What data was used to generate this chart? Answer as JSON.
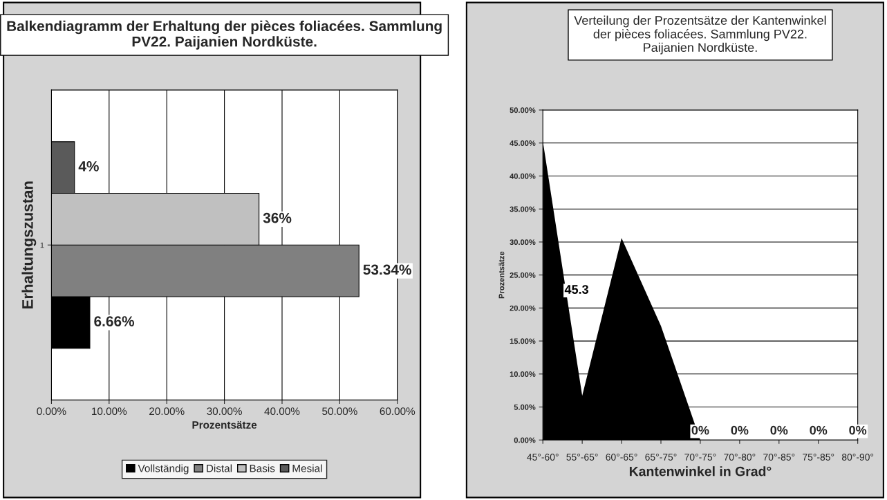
{
  "chart_data": [
    {
      "type": "bar",
      "orientation": "horizontal",
      "title": "Balkendiagramm der Erhaltung der pièces foliacées. Sammlung PV22. Paijanien Nordküste.",
      "xlabel": "Prozentsätze",
      "ylabel": "Erhaltungszustan",
      "categories": [
        "1"
      ],
      "series": [
        {
          "name": "Vollständig",
          "color": "#000000",
          "values": [
            6.66
          ],
          "value_labels": [
            "6.66%"
          ]
        },
        {
          "name": "Distal",
          "color": "#808080",
          "values": [
            53.34
          ],
          "value_labels": [
            "53.34%"
          ]
        },
        {
          "name": "Basis",
          "color": "#c0c0c0",
          "values": [
            36
          ],
          "value_labels": [
            "36%"
          ]
        },
        {
          "name": "Mesial",
          "color": "#5a5a5a",
          "values": [
            4
          ],
          "value_labels": [
            "4%"
          ]
        }
      ],
      "xlim": [
        0,
        60
      ],
      "xticks": [
        {
          "value": 0,
          "label": "0.00%"
        },
        {
          "value": 10,
          "label": "10.00%"
        },
        {
          "value": 20,
          "label": "20.00%"
        },
        {
          "value": 30,
          "label": "30.00%"
        },
        {
          "value": 40,
          "label": "40.00%"
        },
        {
          "value": 50,
          "label": "50.00%"
        },
        {
          "value": 60,
          "label": "60.00%"
        }
      ],
      "grid": "x",
      "legend": "bottom"
    },
    {
      "type": "area",
      "title": "Verteilung der Prozentsätze der Kantenwinkel\nder pièces foliacées. Sammlung PV22.\nPaijanien Nordküste.",
      "xlabel": "Kantenwinkel in Grad°",
      "ylabel": "Prozentsätze",
      "categories": [
        "45°-60°",
        "55°-65°",
        "60°-65°",
        "65°-75°",
        "70°-75°",
        "70°-80°",
        "70°-85°",
        "75°-85°",
        "80°-90°"
      ],
      "series": [
        {
          "color": "#000000",
          "values": [
            45.3,
            6.7,
            30.6,
            17.3,
            0,
            0,
            0,
            0,
            0
          ]
        }
      ],
      "value_labels": [
        "45.3",
        null,
        null,
        null,
        "0%",
        "0%",
        "0%",
        "0%",
        "0%"
      ],
      "ylim": [
        0,
        50
      ],
      "yticks": [
        {
          "value": 0,
          "label": "0.00%"
        },
        {
          "value": 5,
          "label": "5.00%"
        },
        {
          "value": 10,
          "label": "10.00%"
        },
        {
          "value": 15,
          "label": "15.00%"
        },
        {
          "value": 20,
          "label": "20.00%"
        },
        {
          "value": 25,
          "label": "25.00%"
        },
        {
          "value": 30,
          "label": "30.00%"
        },
        {
          "value": 35,
          "label": "35.00%"
        },
        {
          "value": 40,
          "label": "40.00%"
        },
        {
          "value": 45,
          "label": "45.00%"
        },
        {
          "value": 50,
          "label": "50.00%"
        }
      ],
      "grid": "y"
    }
  ]
}
